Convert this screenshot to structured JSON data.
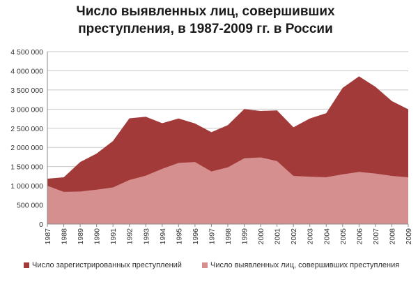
{
  "chart_data": {
    "type": "area",
    "title_line1": "Число выявленных лиц, совершивших",
    "title_line2": "преступления, в 1987-2009 гг. в России",
    "categories": [
      "1987",
      "1988",
      "1989",
      "1990",
      "1991",
      "1992",
      "1993",
      "1994",
      "1995",
      "1996",
      "1997",
      "1998",
      "1999",
      "2000",
      "2001",
      "2002",
      "2003",
      "2004",
      "2005",
      "2006",
      "2007",
      "2008",
      "2009"
    ],
    "series": [
      {
        "name": "Число зарегистрированных преступлений",
        "color": "#a33a3a",
        "values": [
          1185000,
          1220000,
          1619000,
          1839000,
          2168000,
          2761000,
          2800000,
          2633000,
          2756000,
          2625000,
          2397000,
          2582000,
          3001000,
          2952000,
          2968000,
          2526000,
          2756000,
          2894000,
          3555000,
          3855000,
          3583000,
          3210000,
          2994000
        ]
      },
      {
        "name": "Число выявленных лиц, совершивших преступления",
        "color": "#d68f8f",
        "values": [
          1000000,
          840000,
          850000,
          897000,
          956000,
          1149000,
          1263000,
          1442000,
          1596000,
          1619000,
          1373000,
          1481000,
          1717000,
          1741000,
          1645000,
          1258000,
          1237000,
          1223000,
          1297000,
          1361000,
          1318000,
          1256000,
          1220000
        ]
      }
    ],
    "y_ticks": [
      "0",
      "500 000",
      "1 000 000",
      "1 500 000",
      "2 000 000",
      "2 500 000",
      "3 000 000",
      "3 500 000",
      "4 000 000",
      "4 500 000"
    ],
    "ylim": [
      0,
      4500000
    ],
    "grid": true,
    "legend_position": "bottom"
  }
}
